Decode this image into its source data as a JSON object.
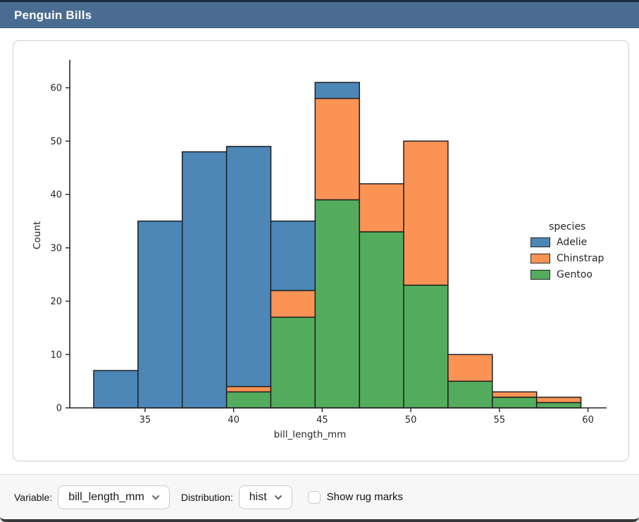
{
  "window": {
    "title": "Penguin Bills"
  },
  "theme": {
    "titlebar_bg": "#4A6C90",
    "titlebar_top_edge": "#1B3045",
    "card_border": "#CFCFCF",
    "footer_bg": "#F7F7F7",
    "window_bottom_edge": "#3A3A3C"
  },
  "footer": {
    "variable_label": "Variable:",
    "variable_value": "bill_length_mm",
    "distribution_label": "Distribution:",
    "distribution_value": "hist",
    "rug_label": "Show rug marks",
    "rug_checked": false
  },
  "chart_data": {
    "type": "bar",
    "subtype": "stacked-histogram",
    "xlabel": "bill_length_mm",
    "ylabel": "Count",
    "bin_edges": [
      32.1,
      34.6,
      37.1,
      39.6,
      42.1,
      44.6,
      47.1,
      49.6,
      52.1,
      54.6,
      57.1,
      59.6
    ],
    "bin_totals": [
      7,
      35,
      48,
      49,
      35,
      61,
      42,
      50,
      10,
      3,
      2
    ],
    "series": [
      {
        "name": "Adelie",
        "color": "#4C87B8",
        "values": [
          7,
          35,
          48,
          45,
          13,
          3,
          0,
          0,
          0,
          0,
          0
        ]
      },
      {
        "name": "Chinstrap",
        "color": "#FB9355",
        "values": [
          0,
          0,
          0,
          1,
          5,
          19,
          9,
          27,
          5,
          1,
          1
        ]
      },
      {
        "name": "Gentoo",
        "color": "#53AC5E",
        "values": [
          0,
          0,
          0,
          3,
          17,
          39,
          33,
          23,
          5,
          2,
          1
        ]
      }
    ],
    "stack_order_bottom_to_top": [
      "Gentoo",
      "Chinstrap",
      "Adelie"
    ],
    "x_ticks": [
      35,
      40,
      45,
      50,
      55,
      60
    ],
    "y_ticks": [
      0,
      10,
      20,
      30,
      40,
      50,
      60
    ],
    "xlim": [
      30.75,
      61.05
    ],
    "ylim": [
      0,
      64.7
    ],
    "grid": false,
    "bar_edge_color": "#1F1F1F",
    "axis_color": "#262626",
    "legend": {
      "title": "species",
      "entries": [
        "Adelie",
        "Chinstrap",
        "Gentoo"
      ],
      "position": "right-outside-middle"
    }
  }
}
